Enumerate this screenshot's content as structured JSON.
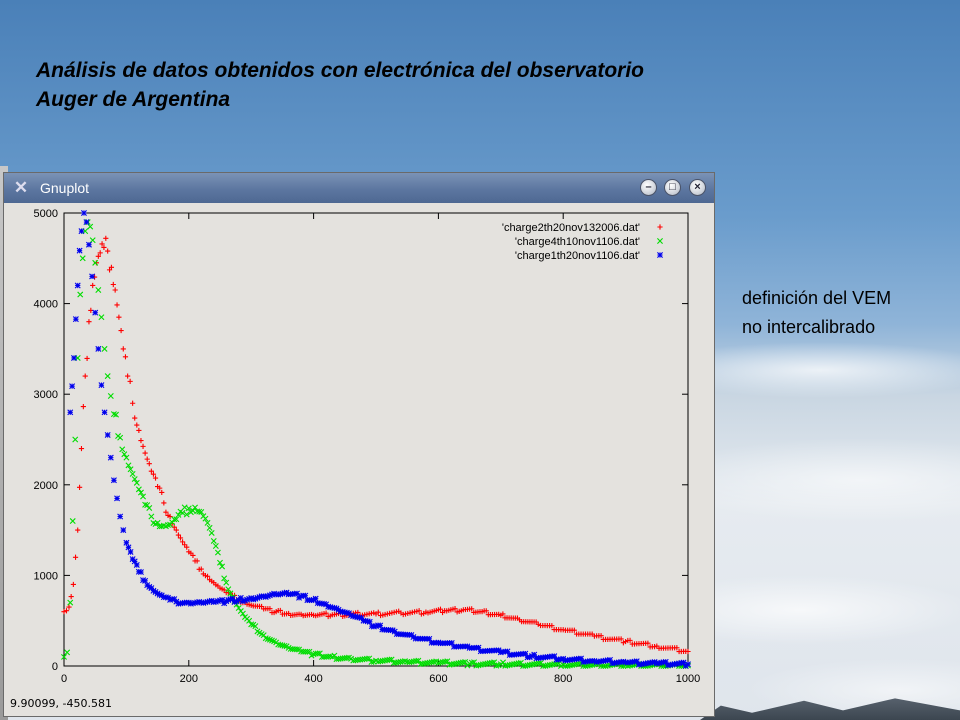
{
  "slide": {
    "title": "Análisis de datos obtenidos con electrónica del observatorio Auger de Argentina",
    "side_note": "definición del VEM no intercalibrado"
  },
  "window": {
    "title": "Gnuplot",
    "app_icon": "x-logo-icon",
    "buttons": [
      "minimize-icon",
      "maximize-icon",
      "close-icon"
    ],
    "coordinate_readout": "9.90099, -450.581"
  },
  "chart_data": {
    "type": "scatter",
    "xlim": [
      0,
      1000
    ],
    "ylim": [
      0,
      5000
    ],
    "x_ticks": [
      0,
      200,
      400,
      600,
      800,
      1000
    ],
    "y_ticks": [
      0,
      1000,
      2000,
      3000,
      4000,
      5000
    ],
    "legend_position": "top-right",
    "grid": false,
    "series": [
      {
        "name": "'charge2th20nov132006.dat'",
        "marker": "+",
        "color": "#ff0000",
        "points": [
          [
            0,
            600
          ],
          [
            8,
            650
          ],
          [
            15,
            900
          ],
          [
            22,
            1500
          ],
          [
            28,
            2400
          ],
          [
            34,
            3200
          ],
          [
            40,
            3800
          ],
          [
            46,
            4200
          ],
          [
            52,
            4450
          ],
          [
            58,
            4560
          ],
          [
            64,
            4620
          ],
          [
            70,
            4580
          ],
          [
            76,
            4400
          ],
          [
            82,
            4150
          ],
          [
            88,
            3850
          ],
          [
            95,
            3500
          ],
          [
            102,
            3200
          ],
          [
            110,
            2900
          ],
          [
            120,
            2600
          ],
          [
            130,
            2350
          ],
          [
            140,
            2150
          ],
          [
            150,
            1980
          ],
          [
            160,
            1800
          ],
          [
            170,
            1650
          ],
          [
            180,
            1500
          ],
          [
            190,
            1370
          ],
          [
            200,
            1260
          ],
          [
            210,
            1160
          ],
          [
            220,
            1070
          ],
          [
            230,
            990
          ],
          [
            240,
            920
          ],
          [
            250,
            860
          ],
          [
            260,
            810
          ],
          [
            270,
            770
          ],
          [
            280,
            730
          ],
          [
            290,
            700
          ],
          [
            300,
            670
          ],
          [
            320,
            630
          ],
          [
            340,
            600
          ],
          [
            360,
            580
          ],
          [
            380,
            570
          ],
          [
            400,
            560
          ],
          [
            430,
            565
          ],
          [
            460,
            570
          ],
          [
            500,
            575
          ],
          [
            540,
            585
          ],
          [
            580,
            595
          ],
          [
            610,
            610
          ],
          [
            640,
            620
          ],
          [
            670,
            600
          ],
          [
            700,
            560
          ],
          [
            730,
            510
          ],
          [
            760,
            460
          ],
          [
            800,
            400
          ],
          [
            850,
            330
          ],
          [
            900,
            270
          ],
          [
            950,
            220
          ],
          [
            1000,
            160
          ]
        ]
      },
      {
        "name": "'charge4th10nov1106.dat'",
        "marker": "x",
        "color": "#00dd00",
        "points": [
          [
            0,
            100
          ],
          [
            5,
            150
          ],
          [
            10,
            700
          ],
          [
            14,
            1600
          ],
          [
            18,
            2500
          ],
          [
            22,
            3400
          ],
          [
            26,
            4100
          ],
          [
            30,
            4500
          ],
          [
            34,
            4800
          ],
          [
            38,
            4900
          ],
          [
            42,
            4850
          ],
          [
            46,
            4700
          ],
          [
            50,
            4450
          ],
          [
            55,
            4150
          ],
          [
            60,
            3850
          ],
          [
            65,
            3500
          ],
          [
            70,
            3200
          ],
          [
            75,
            2980
          ],
          [
            80,
            2780
          ],
          [
            90,
            2520
          ],
          [
            100,
            2300
          ],
          [
            110,
            2120
          ],
          [
            120,
            1950
          ],
          [
            130,
            1780
          ],
          [
            140,
            1650
          ],
          [
            150,
            1580
          ],
          [
            160,
            1550
          ],
          [
            170,
            1560
          ],
          [
            180,
            1620
          ],
          [
            190,
            1690
          ],
          [
            200,
            1740
          ],
          [
            210,
            1750
          ],
          [
            220,
            1700
          ],
          [
            230,
            1580
          ],
          [
            240,
            1380
          ],
          [
            250,
            1140
          ],
          [
            260,
            920
          ],
          [
            270,
            760
          ],
          [
            280,
            640
          ],
          [
            290,
            540
          ],
          [
            300,
            460
          ],
          [
            320,
            340
          ],
          [
            340,
            260
          ],
          [
            360,
            200
          ],
          [
            380,
            160
          ],
          [
            400,
            130
          ],
          [
            430,
            100
          ],
          [
            460,
            80
          ],
          [
            500,
            60
          ],
          [
            550,
            45
          ],
          [
            600,
            35
          ],
          [
            650,
            25
          ],
          [
            700,
            20
          ],
          [
            800,
            12
          ],
          [
            900,
            8
          ],
          [
            1000,
            5
          ]
        ]
      },
      {
        "name": "'charge1th20nov1106.dat'",
        "marker": "*",
        "color": "#0000ee",
        "points": [
          [
            10,
            2800
          ],
          [
            16,
            3400
          ],
          [
            22,
            4200
          ],
          [
            28,
            4800
          ],
          [
            32,
            5000
          ],
          [
            36,
            4900
          ],
          [
            40,
            4650
          ],
          [
            45,
            4300
          ],
          [
            50,
            3900
          ],
          [
            55,
            3500
          ],
          [
            60,
            3100
          ],
          [
            65,
            2800
          ],
          [
            70,
            2550
          ],
          [
            75,
            2300
          ],
          [
            80,
            2050
          ],
          [
            85,
            1850
          ],
          [
            90,
            1650
          ],
          [
            95,
            1500
          ],
          [
            100,
            1360
          ],
          [
            110,
            1180
          ],
          [
            120,
            1040
          ],
          [
            130,
            940
          ],
          [
            140,
            860
          ],
          [
            150,
            800
          ],
          [
            160,
            760
          ],
          [
            170,
            730
          ],
          [
            180,
            710
          ],
          [
            200,
            700
          ],
          [
            220,
            700
          ],
          [
            240,
            705
          ],
          [
            260,
            715
          ],
          [
            280,
            730
          ],
          [
            300,
            750
          ],
          [
            320,
            770
          ],
          [
            340,
            790
          ],
          [
            360,
            790
          ],
          [
            380,
            770
          ],
          [
            400,
            730
          ],
          [
            420,
            680
          ],
          [
            440,
            620
          ],
          [
            460,
            560
          ],
          [
            480,
            500
          ],
          [
            500,
            440
          ],
          [
            530,
            380
          ],
          [
            560,
            320
          ],
          [
            600,
            260
          ],
          [
            650,
            200
          ],
          [
            700,
            150
          ],
          [
            750,
            110
          ],
          [
            800,
            80
          ],
          [
            850,
            55
          ],
          [
            900,
            40
          ],
          [
            950,
            28
          ],
          [
            1000,
            20
          ]
        ]
      }
    ]
  }
}
